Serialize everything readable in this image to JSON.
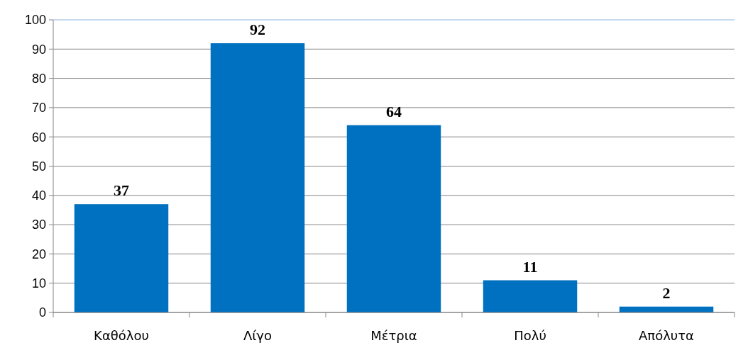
{
  "chart_data": {
    "type": "bar",
    "categories": [
      "Καθόλου",
      "Λίγο",
      "Μέτρια",
      "Πολύ",
      "Απόλυτα"
    ],
    "values": [
      37,
      92,
      64,
      11,
      2
    ],
    "color": "#0070c0",
    "ylim": [
      0,
      100
    ],
    "yticks": [
      0,
      10,
      20,
      30,
      40,
      50,
      60,
      70,
      80,
      90,
      100
    ],
    "grid": "y",
    "data_labels": true
  }
}
